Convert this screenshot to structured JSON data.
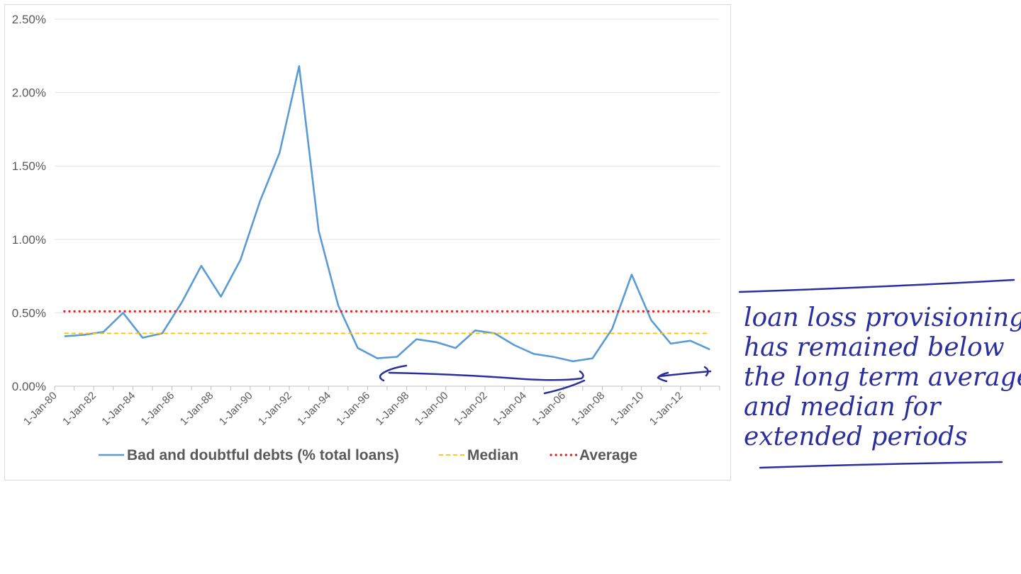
{
  "chart_data": {
    "type": "line",
    "x_tick_labels": [
      "1-Jan-80",
      "1-Jan-82",
      "1-Jan-84",
      "1-Jan-86",
      "1-Jan-88",
      "1-Jan-90",
      "1-Jan-92",
      "1-Jan-94",
      "1-Jan-96",
      "1-Jan-98",
      "1-Jan-00",
      "1-Jan-02",
      "1-Jan-04",
      "1-Jan-06",
      "1-Jan-08",
      "1-Jan-10",
      "1-Jan-12"
    ],
    "y_tick_labels": [
      "0.00%",
      "0.50%",
      "1.00%",
      "1.50%",
      "2.00%",
      "2.50%"
    ],
    "ylim": [
      0,
      2.5
    ],
    "xlim": [
      1980,
      2014
    ],
    "grid": true,
    "legend_position": "bottom",
    "series": [
      {
        "name": "Bad and doubtful debts (% total loans)",
        "style": "solid",
        "color": "#5b9bd5",
        "x": [
          1980.5,
          1981.5,
          1982.5,
          1983.5,
          1984.5,
          1985.5,
          1986.5,
          1987.5,
          1988.5,
          1989.5,
          1990.5,
          1991.5,
          1992.5,
          1993.5,
          1994.5,
          1995.5,
          1996.5,
          1997.5,
          1998.5,
          1999.5,
          2000.5,
          2001.5,
          2002.5,
          2003.5,
          2004.5,
          2005.5,
          2006.5,
          2007.5,
          2008.5,
          2009.5,
          2010.5,
          2011.5,
          2012.5,
          2013.5
        ],
        "values": [
          0.34,
          0.35,
          0.37,
          0.5,
          0.33,
          0.36,
          0.57,
          0.82,
          0.61,
          0.86,
          1.26,
          1.59,
          2.18,
          1.06,
          0.55,
          0.26,
          0.19,
          0.2,
          0.32,
          0.3,
          0.26,
          0.38,
          0.36,
          0.28,
          0.22,
          0.2,
          0.17,
          0.19,
          0.39,
          0.76,
          0.45,
          0.29,
          0.31,
          0.25
        ]
      },
      {
        "name": "Median",
        "style": "dashed",
        "color": "#ffc000",
        "x": [
          1980.5,
          2013.5
        ],
        "values": [
          0.36,
          0.36
        ]
      },
      {
        "name": "Average",
        "style": "dotted",
        "color": "#e02020",
        "x": [
          1980.5,
          2013.5
        ],
        "values": [
          0.51,
          0.51
        ]
      }
    ]
  },
  "annotation": {
    "lines": [
      "loan loss provisioning",
      "has remained below",
      "the long term average",
      "and median for",
      "extended periods"
    ],
    "color": "#2b2f9e"
  }
}
